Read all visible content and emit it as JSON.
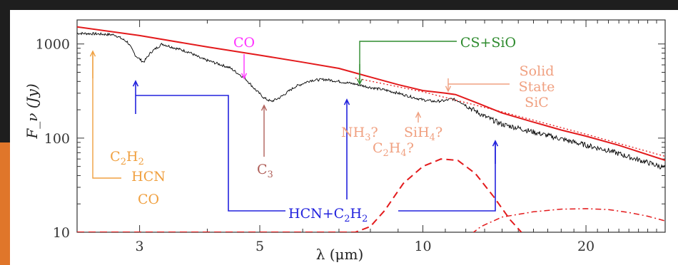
{
  "chart_data": {
    "type": "line",
    "xlabel": "λ (μm)",
    "ylabel": "F_ν (Jy)",
    "xscale": "log",
    "yscale": "log",
    "xlim": [
      2.3,
      28
    ],
    "ylim": [
      10,
      1800
    ],
    "x_ticks": [
      3,
      5,
      10,
      20
    ],
    "y_ticks": [
      10,
      100,
      1000
    ],
    "x_tick_labels": [
      "3",
      "5",
      "10",
      "20"
    ],
    "y_tick_labels": [
      "10",
      "100",
      "1000"
    ],
    "grid": false,
    "legend": "none",
    "colors": {
      "observed": "#000000",
      "model": "#e31a1c",
      "blue": "#2222dd",
      "green": "#2e8b2e",
      "magenta": "#ff33ff",
      "orange": "#f0a040",
      "brown": "#b0605a",
      "salmon": "#f0a080"
    },
    "series": [
      {
        "role": "observed-spectrum",
        "points": [
          [
            2.3,
            1300
          ],
          [
            2.5,
            1280
          ],
          [
            2.7,
            1250
          ],
          [
            2.85,
            1050
          ],
          [
            2.95,
            750
          ],
          [
            3.05,
            640
          ],
          [
            3.15,
            820
          ],
          [
            3.3,
            1000
          ],
          [
            3.5,
            900
          ],
          [
            3.7,
            820
          ],
          [
            3.9,
            700
          ],
          [
            4.1,
            640
          ],
          [
            4.4,
            560
          ],
          [
            4.7,
            430
          ],
          [
            4.9,
            330
          ],
          [
            5.1,
            265
          ],
          [
            5.25,
            245
          ],
          [
            5.45,
            270
          ],
          [
            5.8,
            350
          ],
          [
            6.2,
            410
          ],
          [
            6.6,
            420
          ],
          [
            7,
            400
          ],
          [
            7.5,
            375
          ],
          [
            8,
            345
          ],
          [
            8.5,
            325
          ],
          [
            9,
            300
          ],
          [
            9.5,
            275
          ],
          [
            10,
            255
          ],
          [
            10.5,
            245
          ],
          [
            11,
            250
          ],
          [
            11.3,
            262
          ],
          [
            11.7,
            245
          ],
          [
            12.3,
            205
          ],
          [
            13,
            170
          ],
          [
            14,
            140
          ],
          [
            15,
            128
          ],
          [
            16,
            116
          ],
          [
            18,
            98
          ],
          [
            20,
            84
          ],
          [
            22,
            74
          ],
          [
            24,
            63
          ],
          [
            26,
            55
          ],
          [
            28,
            48
          ]
        ]
      },
      {
        "role": "model-continuum",
        "points": [
          [
            2.3,
            1520
          ],
          [
            3,
            1230
          ],
          [
            4,
            930
          ],
          [
            5,
            760
          ],
          [
            6,
            640
          ],
          [
            7,
            550
          ],
          [
            8,
            445
          ],
          [
            9,
            370
          ],
          [
            10,
            320
          ],
          [
            11,
            300
          ],
          [
            11.5,
            290
          ],
          [
            12.5,
            240
          ],
          [
            14,
            185
          ],
          [
            16,
            148
          ],
          [
            18,
            122
          ],
          [
            20,
            105
          ],
          [
            23,
            84
          ],
          [
            28,
            58
          ]
        ]
      },
      {
        "role": "model-dotted",
        "points": [
          [
            7.5,
            435
          ],
          [
            10,
            310
          ],
          [
            14,
            190
          ],
          [
            20,
            110
          ],
          [
            28,
            64
          ]
        ]
      },
      {
        "role": "dust-dashed",
        "points": [
          [
            2.3,
            10
          ],
          [
            6.8,
            10
          ],
          [
            7.5,
            10
          ],
          [
            8.0,
            11.5
          ],
          [
            8.5,
            17
          ],
          [
            9.2,
            33
          ],
          [
            10,
            50
          ],
          [
            10.8,
            60
          ],
          [
            11.6,
            58
          ],
          [
            12.5,
            42
          ],
          [
            13.5,
            24
          ],
          [
            14.5,
            13.5
          ],
          [
            15.2,
            10
          ]
        ]
      },
      {
        "role": "dust-dashdot",
        "points": [
          [
            11.8,
            8
          ],
          [
            12.8,
            11.5
          ],
          [
            14,
            14.5
          ],
          [
            16,
            16.5
          ],
          [
            18,
            17.6
          ],
          [
            20,
            17.8
          ],
          [
            22,
            17.4
          ],
          [
            24,
            16.2
          ],
          [
            26,
            14.8
          ],
          [
            28,
            13.2
          ]
        ]
      }
    ],
    "annotations": {
      "co_top": "CO",
      "cs_sio": "CS+SiO",
      "solid": "Solid",
      "state": "State",
      "sic": "SiC",
      "nh3": "NH",
      "nh3_sub": "3",
      "nh3_q": "?",
      "sih4": "SiH",
      "sih4_sub": "4",
      "sih4_q": "?",
      "c2h4_c": "C",
      "c2h4_sub1": "2",
      "c2h4_h": "H",
      "c2h4_sub2": "4",
      "c2h4_q": "?",
      "c3": "C",
      "c3_sub": "3",
      "c2h2_c": "C",
      "c2h2_sub1": "2",
      "c2h2_h": "H",
      "c2h2_sub2": "2",
      "hcn": "HCN",
      "co_left": "CO",
      "hcn_c2h2_a": "HCN+C",
      "hcn_c2h2_sub1": "2",
      "hcn_c2h2_h": "H",
      "hcn_c2h2_sub2": "2"
    }
  }
}
